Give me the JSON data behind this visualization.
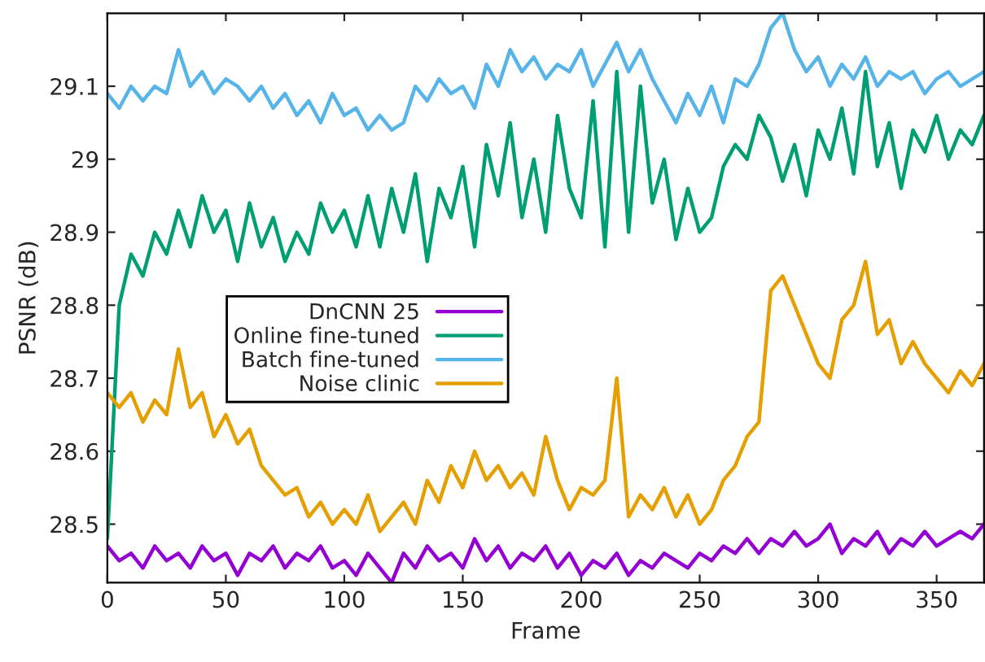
{
  "chart_data": {
    "type": "line",
    "xlabel": "Frame",
    "ylabel": "PSNR (dB)",
    "x": [
      0,
      5,
      10,
      15,
      20,
      25,
      30,
      35,
      40,
      45,
      50,
      55,
      60,
      65,
      70,
      75,
      80,
      85,
      90,
      95,
      100,
      105,
      110,
      115,
      120,
      125,
      130,
      135,
      140,
      145,
      150,
      155,
      160,
      165,
      170,
      175,
      180,
      185,
      190,
      195,
      200,
      205,
      210,
      215,
      220,
      225,
      230,
      235,
      240,
      245,
      250,
      255,
      260,
      265,
      270,
      275,
      280,
      285,
      290,
      295,
      300,
      305,
      310,
      315,
      320,
      325,
      330,
      335,
      340,
      345,
      350,
      355,
      360,
      365,
      370
    ],
    "series": [
      {
        "name": "DnCNN 25",
        "color": "#9400d3",
        "values": [
          28.47,
          28.45,
          28.46,
          28.44,
          28.47,
          28.45,
          28.46,
          28.44,
          28.47,
          28.45,
          28.46,
          28.43,
          28.46,
          28.45,
          28.47,
          28.44,
          28.46,
          28.45,
          28.47,
          28.44,
          28.45,
          28.43,
          28.46,
          28.44,
          28.42,
          28.46,
          28.44,
          28.47,
          28.45,
          28.46,
          28.44,
          28.48,
          28.45,
          28.47,
          28.44,
          28.46,
          28.45,
          28.47,
          28.44,
          28.46,
          28.43,
          28.45,
          28.44,
          28.46,
          28.43,
          28.45,
          28.44,
          28.46,
          28.45,
          28.44,
          28.46,
          28.45,
          28.47,
          28.46,
          28.48,
          28.46,
          28.48,
          28.47,
          28.49,
          28.47,
          28.48,
          28.5,
          28.46,
          28.48,
          28.47,
          28.49,
          28.46,
          28.48,
          28.47,
          28.49,
          28.47,
          28.48,
          28.49,
          28.48,
          28.5
        ]
      },
      {
        "name": "Online fine-tuned",
        "color": "#009e73",
        "values": [
          28.48,
          28.8,
          28.87,
          28.84,
          28.9,
          28.87,
          28.93,
          28.88,
          28.95,
          28.9,
          28.93,
          28.86,
          28.94,
          28.88,
          28.92,
          28.86,
          28.9,
          28.87,
          28.94,
          28.9,
          28.93,
          28.88,
          28.95,
          28.88,
          28.96,
          28.9,
          28.98,
          28.86,
          28.96,
          28.92,
          28.99,
          28.88,
          29.02,
          28.95,
          29.05,
          28.92,
          29.0,
          28.9,
          29.06,
          28.96,
          28.92,
          29.08,
          28.88,
          29.12,
          28.9,
          29.1,
          28.94,
          29.0,
          28.89,
          28.96,
          28.9,
          28.92,
          28.99,
          29.02,
          29.0,
          29.06,
          29.03,
          28.97,
          29.02,
          28.95,
          29.04,
          29.0,
          29.07,
          28.98,
          29.12,
          28.99,
          29.05,
          28.96,
          29.04,
          29.01,
          29.06,
          29.0,
          29.04,
          29.02,
          29.06
        ]
      },
      {
        "name": "Batch fine-tuned",
        "color": "#56b4e9",
        "values": [
          29.09,
          29.07,
          29.1,
          29.08,
          29.1,
          29.09,
          29.15,
          29.1,
          29.12,
          29.09,
          29.11,
          29.1,
          29.08,
          29.1,
          29.07,
          29.09,
          29.06,
          29.08,
          29.05,
          29.09,
          29.06,
          29.07,
          29.04,
          29.06,
          29.04,
          29.05,
          29.1,
          29.08,
          29.11,
          29.09,
          29.1,
          29.07,
          29.13,
          29.1,
          29.15,
          29.12,
          29.14,
          29.11,
          29.13,
          29.12,
          29.15,
          29.1,
          29.13,
          29.16,
          29.12,
          29.15,
          29.11,
          29.08,
          29.05,
          29.09,
          29.06,
          29.1,
          29.05,
          29.11,
          29.1,
          29.13,
          29.18,
          29.2,
          29.15,
          29.12,
          29.14,
          29.1,
          29.13,
          29.11,
          29.14,
          29.1,
          29.12,
          29.11,
          29.12,
          29.09,
          29.11,
          29.12,
          29.1,
          29.11,
          29.12
        ]
      },
      {
        "name": "Noise clinic",
        "color": "#e69f00",
        "values": [
          28.68,
          28.66,
          28.68,
          28.64,
          28.67,
          28.65,
          28.74,
          28.66,
          28.68,
          28.62,
          28.65,
          28.61,
          28.63,
          28.58,
          28.56,
          28.54,
          28.55,
          28.51,
          28.53,
          28.5,
          28.52,
          28.5,
          28.54,
          28.49,
          28.51,
          28.53,
          28.5,
          28.56,
          28.53,
          28.58,
          28.55,
          28.6,
          28.56,
          28.58,
          28.55,
          28.57,
          28.54,
          28.62,
          28.56,
          28.52,
          28.55,
          28.54,
          28.56,
          28.7,
          28.51,
          28.54,
          28.52,
          28.55,
          28.51,
          28.54,
          28.5,
          28.52,
          28.56,
          28.58,
          28.62,
          28.64,
          28.82,
          28.84,
          28.8,
          28.76,
          28.72,
          28.7,
          28.78,
          28.8,
          28.86,
          28.76,
          28.78,
          28.72,
          28.75,
          28.72,
          28.7,
          28.68,
          28.71,
          28.69,
          28.72
        ]
      }
    ],
    "xlim": [
      0,
      370
    ],
    "xticks": [
      0,
      50,
      100,
      150,
      200,
      250,
      300,
      350
    ],
    "ylim": [
      28.42,
      29.2
    ],
    "yticks": [
      28.5,
      28.6,
      28.7,
      28.8,
      28.9,
      {
        "value": 29,
        "label": "29"
      },
      29.1
    ],
    "grid": false,
    "legend": "center left",
    "marker": "none",
    "line_style": "solid"
  }
}
